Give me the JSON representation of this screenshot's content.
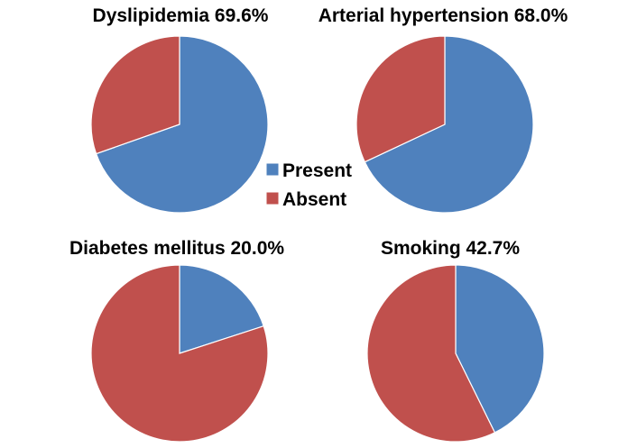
{
  "colors": {
    "present": "#4f81bd",
    "absent": "#c0504d"
  },
  "legend": {
    "items": [
      {
        "label": "Present",
        "color": "#4f81bd"
      },
      {
        "label": "Absent",
        "color": "#c0504d"
      }
    ]
  },
  "chart_data": [
    {
      "type": "pie",
      "title": "Dyslipidemia 69.6%",
      "categories": [
        "Present",
        "Absent"
      ],
      "values": [
        69.6,
        30.4
      ],
      "legend": "center"
    },
    {
      "type": "pie",
      "title": "Arterial hypertension 68.0%",
      "categories": [
        "Present",
        "Absent"
      ],
      "values": [
        68.0,
        32.0
      ],
      "legend": "center"
    },
    {
      "type": "pie",
      "title": "Diabetes mellitus 20.0%",
      "categories": [
        "Present",
        "Absent"
      ],
      "values": [
        20.0,
        80.0
      ],
      "legend": "center"
    },
    {
      "type": "pie",
      "title": "Smoking 42.7%",
      "categories": [
        "Present",
        "Absent"
      ],
      "values": [
        42.7,
        57.3
      ],
      "legend": "center"
    }
  ]
}
